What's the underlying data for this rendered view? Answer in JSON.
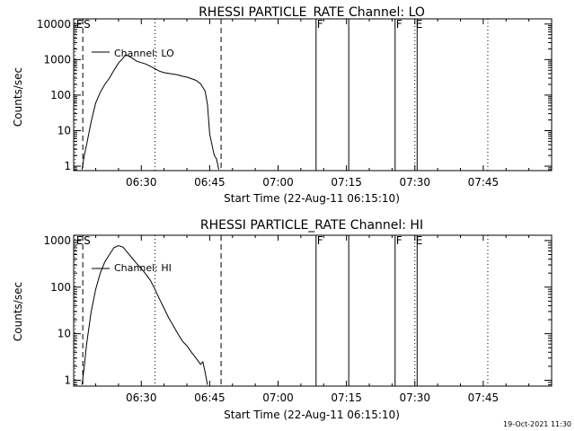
{
  "footer_timestamp": "19-Oct-2021 11:30",
  "chart_data": [
    {
      "type": "line",
      "title": "RHESSI PARTICLE_RATE Channel: LO",
      "xlabel": "Start Time (22-Aug-11 06:15:10)",
      "ylabel": "Counts/sec",
      "yscale": "log",
      "ylim": [
        0.75,
        14000
      ],
      "xlim": [
        "06:15:10",
        "08:00:00"
      ],
      "xticks": [
        "06:30",
        "06:45",
        "07:00",
        "07:15",
        "07:30",
        "07:45"
      ],
      "yticks": [
        "1",
        "10",
        "100",
        "1000",
        "10000"
      ],
      "legend": {
        "label": "Channel: LO",
        "placement": "top-left"
      },
      "markers": [
        {
          "label": "E",
          "time": "06:15:30",
          "style": "dotted"
        },
        {
          "label": "S",
          "time": "06:17:10",
          "style": "dashed"
        },
        {
          "label": "",
          "time": "06:33:00",
          "style": "dotted"
        },
        {
          "label": "",
          "time": "06:47:30",
          "style": "dashed"
        },
        {
          "label": "F",
          "time": "07:08:20",
          "style": "solid"
        },
        {
          "label": "",
          "time": "07:15:30",
          "style": "solid"
        },
        {
          "label": "F",
          "time": "07:25:40",
          "style": "solid"
        },
        {
          "label": "E",
          "time": "07:30:00",
          "style": "dotted"
        },
        {
          "label": "",
          "time": "07:30:30",
          "style": "solid"
        },
        {
          "label": "",
          "time": "07:46:00",
          "style": "dotted"
        }
      ],
      "series": [
        {
          "x": [
            "06:17:00",
            "06:17:30",
            "06:18:00",
            "06:19:00",
            "06:20:00",
            "06:21:00",
            "06:22:00",
            "06:23:00",
            "06:24:00",
            "06:25:00",
            "06:26:00",
            "06:26:30",
            "06:27:00",
            "06:28:00",
            "06:29:00",
            "06:30:00",
            "06:31:00",
            "06:32:00",
            "06:33:00",
            "06:34:00",
            "06:35:00",
            "06:36:00",
            "06:37:00",
            "06:38:00",
            "06:39:00",
            "06:40:00",
            "06:41:00",
            "06:42:00",
            "06:43:00",
            "06:44:00",
            "06:44:30",
            "06:45:00",
            "06:45:30",
            "06:46:00",
            "06:46:30",
            "06:47:00"
          ],
          "y": [
            0.8,
            2,
            4,
            18,
            60,
            120,
            200,
            300,
            500,
            800,
            1100,
            1350,
            1300,
            1100,
            900,
            820,
            750,
            650,
            550,
            470,
            430,
            410,
            390,
            370,
            340,
            320,
            290,
            260,
            210,
            130,
            55,
            8,
            4,
            2,
            1.6,
            0.8
          ]
        }
      ]
    },
    {
      "type": "line",
      "title": "RHESSI PARTICLE_RATE Channel: HI",
      "xlabel": "Start Time (22-Aug-11 06:15:10)",
      "ylabel": "Counts/sec",
      "yscale": "log",
      "ylim": [
        0.75,
        1300
      ],
      "xlim": [
        "06:15:10",
        "08:00:00"
      ],
      "xticks": [
        "06:30",
        "06:45",
        "07:00",
        "07:15",
        "07:30",
        "07:45"
      ],
      "yticks": [
        "1",
        "10",
        "100",
        "1000"
      ],
      "legend": {
        "label": "Channel: HI",
        "placement": "top-left"
      },
      "markers": [
        {
          "label": "E",
          "time": "06:15:30",
          "style": "dotted"
        },
        {
          "label": "S",
          "time": "06:17:10",
          "style": "dashed"
        },
        {
          "label": "",
          "time": "06:33:00",
          "style": "dotted"
        },
        {
          "label": "",
          "time": "06:47:30",
          "style": "dashed"
        },
        {
          "label": "F",
          "time": "07:08:20",
          "style": "solid"
        },
        {
          "label": "",
          "time": "07:15:30",
          "style": "solid"
        },
        {
          "label": "F",
          "time": "07:25:40",
          "style": "solid"
        },
        {
          "label": "E",
          "time": "07:30:00",
          "style": "dotted"
        },
        {
          "label": "",
          "time": "07:30:30",
          "style": "solid"
        },
        {
          "label": "",
          "time": "07:46:00",
          "style": "dotted"
        }
      ],
      "series": [
        {
          "x": [
            "06:17:00",
            "06:17:30",
            "06:18:00",
            "06:19:00",
            "06:20:00",
            "06:21:00",
            "06:22:00",
            "06:23:00",
            "06:24:00",
            "06:25:00",
            "06:26:00",
            "06:27:00",
            "06:28:00",
            "06:29:00",
            "06:30:00",
            "06:31:00",
            "06:32:00",
            "06:33:00",
            "06:34:00",
            "06:35:00",
            "06:36:00",
            "06:37:00",
            "06:38:00",
            "06:39:00",
            "06:40:00",
            "06:41:00",
            "06:42:00",
            "06:43:00",
            "06:43:30",
            "06:44:00",
            "06:44:30"
          ],
          "y": [
            0.8,
            2,
            6,
            30,
            90,
            200,
            350,
            500,
            700,
            780,
            720,
            550,
            420,
            320,
            250,
            190,
            140,
            90,
            55,
            35,
            22,
            15,
            10,
            7,
            5.5,
            4,
            3,
            2.2,
            2.5,
            1.5,
            0.8
          ]
        }
      ]
    }
  ]
}
